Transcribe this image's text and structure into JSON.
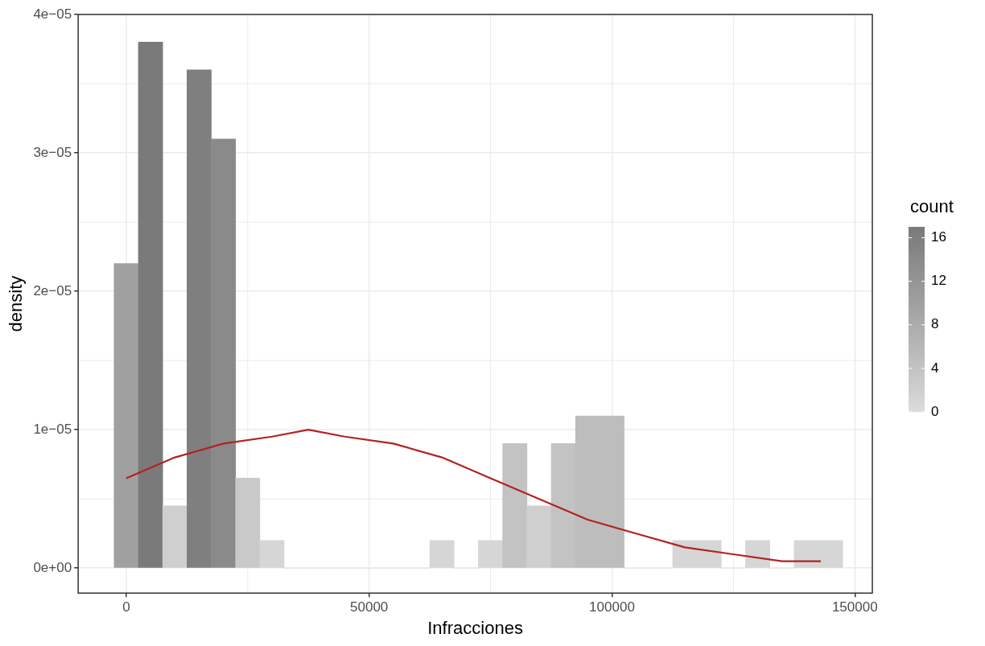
{
  "chart_data": {
    "type": "histogram",
    "xlabel": "Infracciones",
    "ylabel": "density",
    "clabel": "count",
    "bins": [
      -2500,
      2500,
      7500,
      12500,
      17500,
      22500,
      27500,
      32500,
      37500,
      42500,
      47500,
      52500,
      57500,
      62500,
      67500,
      72500,
      77500,
      82500,
      87500,
      92500,
      97500,
      102500,
      107500,
      112500,
      117500,
      122500,
      127500,
      132500,
      137500,
      142500,
      147500
    ],
    "values": [
      2.2e-05,
      3.8e-05,
      4.5e-06,
      3.6e-05,
      3.1e-05,
      6.5e-06,
      2e-06,
      0,
      0,
      0,
      0,
      0,
      0,
      2e-06,
      0,
      2e-06,
      9e-06,
      4.5e-06,
      9e-06,
      1.1e-05,
      1.1e-05,
      0,
      0,
      2e-06,
      2e-06,
      0,
      2e-06,
      0,
      2e-06,
      2e-06
    ],
    "cvalues": [
      10,
      17,
      2,
      16,
      14,
      3,
      1,
      0,
      0,
      0,
      0,
      0,
      0,
      1,
      0,
      1,
      4,
      2,
      4,
      5,
      5,
      0,
      0,
      1,
      1,
      0,
      1,
      0,
      1,
      1
    ],
    "colors": [
      "#a0a0a0",
      "#7a7a7a",
      "#cfcfcf",
      "#7f7f7f",
      "#8a8a8a",
      "#c9c9c9",
      "#d6d6d6",
      "#dcdcdc",
      "#dcdcdc",
      "#dcdcdc",
      "#dcdcdc",
      "#dcdcdc",
      "#dcdcdc",
      "#d6d6d6",
      "#dcdcdc",
      "#d6d6d6",
      "#c3c3c3",
      "#cfcfcf",
      "#c3c3c3",
      "#bdbdbd",
      "#bdbdbd",
      "#dcdcdc",
      "#dcdcdc",
      "#d6d6d6",
      "#d6d6d6",
      "#dcdcdc",
      "#d6d6d6",
      "#dcdcdc",
      "#d6d6d6",
      "#d6d6d6"
    ],
    "clim": [
      0,
      17
    ],
    "cticks": [
      0,
      4,
      8,
      12,
      16
    ],
    "series": [
      {
        "type": "line",
        "color": "#b22222",
        "x": [
          0,
          10000,
          20000,
          30000,
          37500,
          45000,
          55000,
          65000,
          75000,
          85000,
          95000,
          105000,
          115000,
          125000,
          135000,
          143000
        ],
        "values": [
          6.5e-06,
          8e-06,
          9e-06,
          9.5e-06,
          1e-05,
          9.5e-06,
          9e-06,
          8e-06,
          6.5e-06,
          5e-06,
          3.5e-06,
          2.5e-06,
          1.5e-06,
          1e-06,
          5e-07,
          5e-07
        ]
      }
    ],
    "xlim": [
      -9900,
      153600
    ],
    "xticks": [
      0,
      50000,
      100000,
      150000
    ],
    "ylim": [
      -1.8e-06,
      4e-05
    ],
    "yticks": [
      {
        "value": 0,
        "label": "0e+00"
      },
      {
        "value": 1e-05,
        "label": "1e−05"
      },
      {
        "value": 2e-05,
        "label": "2e−05"
      },
      {
        "value": 3e-05,
        "label": "3e−05"
      },
      {
        "value": 4e-05,
        "label": "4e−05"
      }
    ],
    "grid": true
  }
}
